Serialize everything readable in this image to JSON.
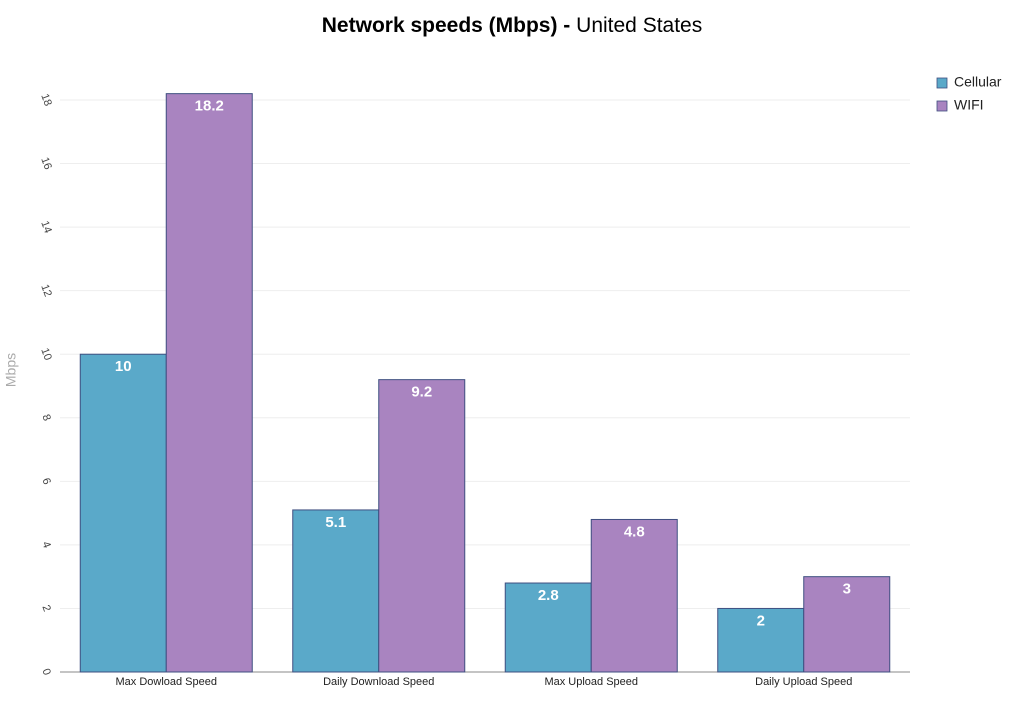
{
  "chart_data": {
    "type": "bar",
    "title": "Network speeds (Mbps) -",
    "subtitle": "United States",
    "y_label": "Mbps",
    "categories": [
      "Max Dowload Speed",
      "Daily Download Speed",
      "Max Upload Speed",
      "Daily Upload Speed"
    ],
    "series": [
      {
        "name": "Cellular",
        "color": "#5aa9c9",
        "values": [
          10,
          5.1,
          2.8,
          2
        ]
      },
      {
        "name": "WIFI",
        "color": "#a984c0",
        "values": [
          18.2,
          9.2,
          4.8,
          3
        ]
      }
    ],
    "ylim": [
      0,
      18
    ],
    "yticks": [
      0,
      2,
      4,
      6,
      8,
      10,
      12,
      14,
      16,
      18
    ],
    "grid": true,
    "legend": "top-right"
  }
}
